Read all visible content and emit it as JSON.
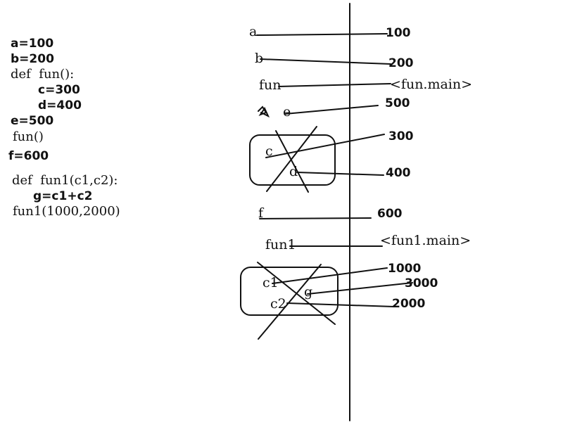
{
  "code": {
    "line_a": "a=100",
    "line_b": "b=200",
    "line_def_fun": "def  fun():",
    "line_c": "c=300",
    "line_d": "d=400",
    "line_e": "e=500",
    "line_call_fun": "fun()",
    "line_f": "f=600",
    "line_def_fun1": "def  fun1(c1,c2):",
    "line_g": "g=c1+c2",
    "line_call_fun1": "fun1(1000,2000)"
  },
  "names": {
    "a": "a",
    "b": "b",
    "fun": "fun",
    "e": "e",
    "c": "c",
    "d": "d",
    "f": "f",
    "fun1": "fun1",
    "c1": "c1",
    "c2": "c2",
    "g": "g"
  },
  "values": {
    "v100": "100",
    "v200": "200",
    "fun_ref": "<fun.main>",
    "v500": "500",
    "v300": "300",
    "v400": "400",
    "v600": "600",
    "fun1_ref": "<fun1.main>",
    "v1000": "1000",
    "v3000": "3000",
    "v2000": "2000"
  },
  "colors": {
    "ink": "#111111",
    "background": "#ffffff"
  }
}
